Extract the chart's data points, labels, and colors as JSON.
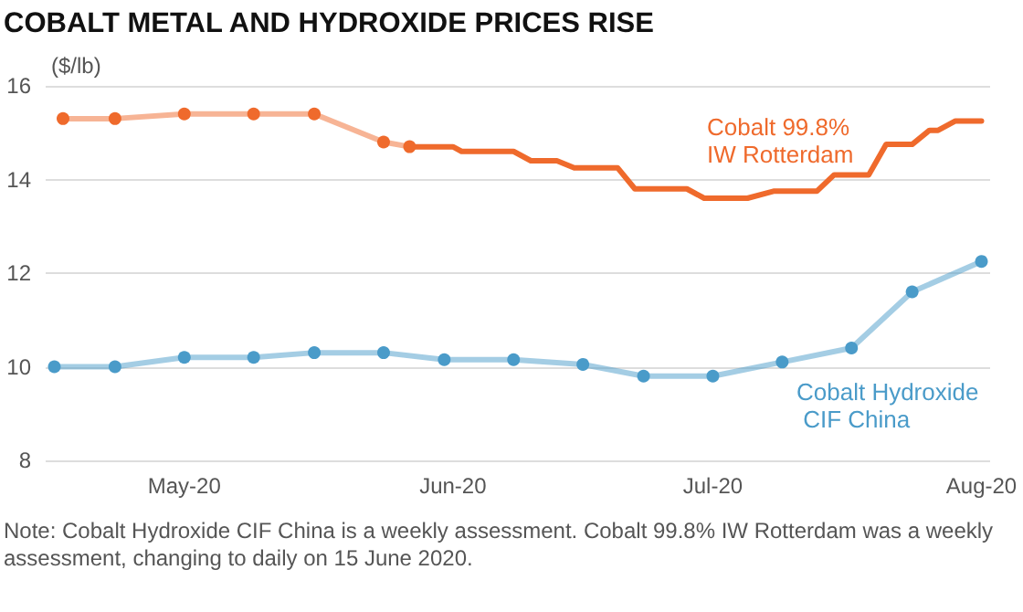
{
  "chart_data": {
    "type": "line",
    "title": "COBALT METAL AND HYDROXIDE PRICES RISE",
    "ylabel": "($/lb)",
    "annotations": [
      "Note: Cobalt Hydroxide CIF China is a weekly assessment. Cobalt 99.8% IW Rotterdam was a weekly assessment, changing to daily on 15 June 2020."
    ],
    "xlim": [
      "2020-04-15",
      "2020-08-02"
    ],
    "xticks": [
      {
        "value": "2020-05-01",
        "label": "May-20"
      },
      {
        "value": "2020-06-01",
        "label": "Jun-20"
      },
      {
        "value": "2020-07-01",
        "label": "Jul-20"
      },
      {
        "value": "2020-08-01",
        "label": "Aug-20"
      }
    ],
    "ylim": [
      8,
      16
    ],
    "yticks": [
      8,
      10,
      12,
      14,
      16
    ],
    "grid": "y",
    "legend": false,
    "series": [
      {
        "color": "#ef6a2c",
        "marker": "circle",
        "x": [
          "2020-04-17",
          "2020-04-23",
          "2020-05-01",
          "2020-05-09",
          "2020-05-16",
          "2020-05-24",
          "2020-05-27"
        ],
        "values": [
          15.3,
          15.3,
          15.4,
          15.4,
          15.4,
          14.8,
          14.7
        ]
      },
      {
        "name": "Cobalt 99.8% IW Rotterdam",
        "color": "#ef6a2c",
        "marker": "none",
        "x": [
          "2020-05-27",
          "2020-06-01",
          "2020-06-02",
          "2020-06-08",
          "2020-06-10",
          "2020-06-13",
          "2020-06-15",
          "2020-06-20",
          "2020-06-22",
          "2020-06-28",
          "2020-06-30",
          "2020-07-05",
          "2020-07-08",
          "2020-07-13",
          "2020-07-15",
          "2020-07-19",
          "2020-07-21",
          "2020-07-24",
          "2020-07-26",
          "2020-07-27",
          "2020-07-29",
          "2020-08-01"
        ],
        "values": [
          14.7,
          14.7,
          14.6,
          14.6,
          14.4,
          14.4,
          14.25,
          14.25,
          13.8,
          13.8,
          13.6,
          13.6,
          13.75,
          13.75,
          14.1,
          14.1,
          14.75,
          14.75,
          15.05,
          15.05,
          15.25,
          15.25
        ]
      },
      {
        "name": "Cobalt Hydroxide CIF China",
        "color": "#4a9bc9",
        "marker": "circle",
        "x": [
          "2020-04-16",
          "2020-04-23",
          "2020-05-01",
          "2020-05-09",
          "2020-05-16",
          "2020-05-24",
          "2020-05-31",
          "2020-06-08",
          "2020-06-16",
          "2020-06-23",
          "2020-07-01",
          "2020-07-09",
          "2020-07-17",
          "2020-07-24",
          "2020-08-01"
        ],
        "values": [
          10.0,
          10.0,
          10.2,
          10.2,
          10.3,
          10.3,
          10.15,
          10.15,
          10.05,
          9.8,
          9.8,
          10.1,
          10.4,
          11.6,
          12.25
        ]
      }
    ]
  }
}
